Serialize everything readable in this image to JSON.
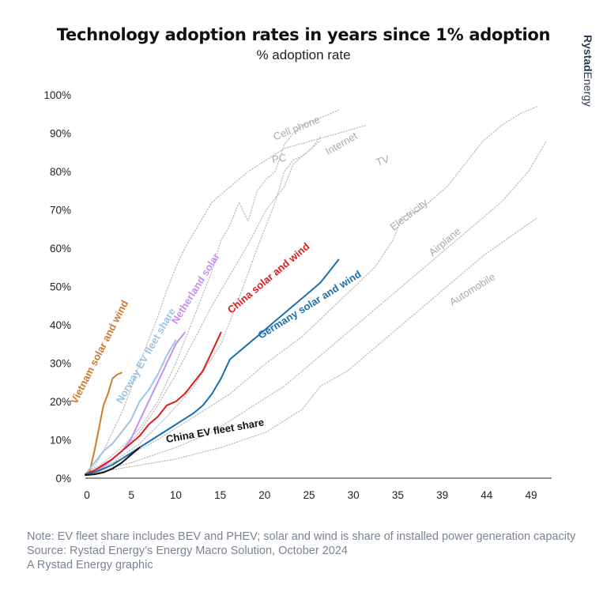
{
  "header": {
    "title": "Technology adoption rates in years since 1% adoption",
    "subtitle": "% adoption rate",
    "brand_bold": "Rystad",
    "brand_light": "Energy"
  },
  "notes": {
    "note": "Note: EV fleet share includes BEV and PHEV; solar and wind is share of installed power generation capacity",
    "source": "Source: Rystad Energy’s Energy Macro Solution, October 2024",
    "credit": "A Rystad Energy graphic"
  },
  "chart_data": {
    "type": "line",
    "title": "Technology adoption rates in years since 1% adoption",
    "subtitle": "% adoption rate",
    "xlabel": "",
    "ylabel": "",
    "x_ticks": [
      "0",
      "5",
      "10",
      "15",
      "20",
      "25",
      "30",
      "35",
      "39",
      "44",
      "49"
    ],
    "y_ticks": [
      "0%",
      "10%",
      "20%",
      "30%",
      "40%",
      "50%",
      "60%",
      "70%",
      "80%",
      "90%",
      "100%"
    ],
    "xlim": [
      0,
      50
    ],
    "ylim": [
      0,
      100
    ],
    "grid": false,
    "legend": "inline labels",
    "series": [
      {
        "name": "Cell phone",
        "color": "#b5b5b5",
        "style": "dotted",
        "points": [
          [
            0,
            1
          ],
          [
            2,
            4
          ],
          [
            4,
            8
          ],
          [
            6,
            13
          ],
          [
            8,
            20
          ],
          [
            10,
            30
          ],
          [
            12,
            42
          ],
          [
            14,
            54
          ],
          [
            15,
            62
          ],
          [
            16,
            66
          ],
          [
            17,
            72
          ],
          [
            18,
            67
          ],
          [
            19,
            75
          ],
          [
            20,
            78
          ],
          [
            21,
            80
          ],
          [
            22,
            87
          ],
          [
            23,
            90
          ],
          [
            24,
            92
          ],
          [
            25,
            93
          ],
          [
            26,
            94
          ],
          [
            28,
            96
          ]
        ]
      },
      {
        "name": "PC",
        "color": "#b5b5b5",
        "style": "dotted",
        "points": [
          [
            0,
            1
          ],
          [
            3,
            4
          ],
          [
            6,
            9
          ],
          [
            9,
            16
          ],
          [
            12,
            24
          ],
          [
            15,
            35
          ],
          [
            17,
            47
          ],
          [
            19,
            60
          ],
          [
            20,
            66
          ],
          [
            21,
            72
          ],
          [
            22,
            80
          ],
          [
            23,
            83
          ],
          [
            24,
            84
          ],
          [
            25,
            86
          ],
          [
            26,
            89
          ]
        ]
      },
      {
        "name": "Internet",
        "color": "#b5b5b5",
        "style": "dotted",
        "points": [
          [
            0,
            1
          ],
          [
            2,
            3
          ],
          [
            4,
            7
          ],
          [
            6,
            12
          ],
          [
            8,
            19
          ],
          [
            10,
            27
          ],
          [
            12,
            36
          ],
          [
            14,
            45
          ],
          [
            16,
            53
          ],
          [
            18,
            61
          ],
          [
            20,
            70
          ],
          [
            22,
            76
          ],
          [
            23,
            82
          ],
          [
            24,
            84
          ],
          [
            25,
            86
          ],
          [
            26,
            88
          ]
        ]
      },
      {
        "name": "TV",
        "color": "#b5b5b5",
        "style": "dotted",
        "points": [
          [
            0,
            1
          ],
          [
            1,
            3
          ],
          [
            2,
            7
          ],
          [
            3,
            12
          ],
          [
            4,
            17
          ],
          [
            5,
            23
          ],
          [
            6,
            30
          ],
          [
            7,
            36
          ],
          [
            8,
            42
          ],
          [
            9,
            49
          ],
          [
            10,
            55
          ],
          [
            11,
            60
          ],
          [
            12,
            64
          ],
          [
            13,
            68
          ],
          [
            14,
            72
          ],
          [
            16,
            76
          ],
          [
            18,
            80
          ],
          [
            20,
            83
          ],
          [
            22,
            86
          ],
          [
            25,
            88
          ],
          [
            28,
            90
          ],
          [
            31,
            92
          ]
        ]
      },
      {
        "name": "Electricity",
        "color": "#b5b5b5",
        "style": "dotted",
        "points": [
          [
            0,
            1
          ],
          [
            4,
            5
          ],
          [
            8,
            10
          ],
          [
            12,
            16
          ],
          [
            16,
            22
          ],
          [
            20,
            30
          ],
          [
            24,
            37
          ],
          [
            28,
            46
          ],
          [
            32,
            55
          ],
          [
            34,
            62
          ],
          [
            35,
            68
          ],
          [
            37,
            70
          ],
          [
            40,
            76
          ],
          [
            42,
            82
          ],
          [
            44,
            88
          ],
          [
            46,
            92
          ],
          [
            48,
            95
          ],
          [
            50,
            97
          ]
        ]
      },
      {
        "name": "Airplane",
        "color": "#b5b5b5",
        "style": "dotted",
        "points": [
          [
            0,
            1
          ],
          [
            5,
            4
          ],
          [
            10,
            8
          ],
          [
            14,
            12
          ],
          [
            18,
            18
          ],
          [
            22,
            24
          ],
          [
            25,
            30
          ],
          [
            28,
            36
          ],
          [
            31,
            42
          ],
          [
            34,
            48
          ],
          [
            37,
            54
          ],
          [
            40,
            60
          ],
          [
            43,
            66
          ],
          [
            46,
            72
          ],
          [
            49,
            80
          ],
          [
            51,
            88
          ]
        ]
      },
      {
        "name": "Automobile",
        "color": "#b5b5b5",
        "style": "dotted",
        "points": [
          [
            0,
            1
          ],
          [
            5,
            3
          ],
          [
            10,
            5
          ],
          [
            15,
            8
          ],
          [
            20,
            12
          ],
          [
            24,
            18
          ],
          [
            26,
            24
          ],
          [
            29,
            28
          ],
          [
            32,
            34
          ],
          [
            35,
            40
          ],
          [
            38,
            46
          ],
          [
            41,
            52
          ],
          [
            44,
            58
          ],
          [
            47,
            63
          ],
          [
            50,
            68
          ]
        ]
      },
      {
        "name": "Vietnam solar and wind",
        "color": "#d07a2e",
        "style": "solid",
        "points": [
          [
            0,
            1
          ],
          [
            0.5,
            2
          ],
          [
            1,
            7
          ],
          [
            1.5,
            13
          ],
          [
            2,
            19
          ],
          [
            2.5,
            22
          ],
          [
            3,
            26
          ],
          [
            3.5,
            27
          ],
          [
            4,
            27.5
          ]
        ]
      },
      {
        "name": "Norway EV fleet share",
        "color": "#9cc4e4",
        "style": "solid",
        "points": [
          [
            0,
            1
          ],
          [
            1,
            4
          ],
          [
            2,
            7
          ],
          [
            3,
            9
          ],
          [
            4,
            12
          ],
          [
            5,
            15
          ],
          [
            6,
            20
          ],
          [
            7,
            23
          ],
          [
            8,
            27
          ],
          [
            9,
            32
          ],
          [
            10,
            36
          ]
        ]
      },
      {
        "name": "Netherland solar",
        "color": "#c58ff0",
        "style": "solid",
        "points": [
          [
            0,
            1
          ],
          [
            1,
            2
          ],
          [
            2,
            3
          ],
          [
            3,
            5
          ],
          [
            4,
            7
          ],
          [
            5,
            10
          ],
          [
            6,
            15
          ],
          [
            7,
            20
          ],
          [
            8,
            25
          ],
          [
            9,
            30
          ],
          [
            10,
            35
          ],
          [
            11,
            38
          ]
        ]
      },
      {
        "name": "China solar and wind",
        "color": "#e01a1a",
        "style": "solid",
        "points": [
          [
            0,
            1
          ],
          [
            1,
            2
          ],
          [
            2,
            3.5
          ],
          [
            3,
            5
          ],
          [
            4,
            7
          ],
          [
            5,
            9
          ],
          [
            6,
            11
          ],
          [
            7,
            14
          ],
          [
            8,
            16
          ],
          [
            9,
            19
          ],
          [
            10,
            20
          ],
          [
            11,
            22
          ],
          [
            12,
            25
          ],
          [
            13,
            28
          ],
          [
            14,
            33
          ],
          [
            15,
            38
          ]
        ]
      },
      {
        "name": "Germany solar and wind",
        "color": "#1a6fae",
        "style": "solid",
        "points": [
          [
            0,
            1
          ],
          [
            1,
            1.5
          ],
          [
            2,
            2.5
          ],
          [
            3,
            3.5
          ],
          [
            4,
            5
          ],
          [
            5,
            6.5
          ],
          [
            6,
            8
          ],
          [
            7,
            9.5
          ],
          [
            8,
            11
          ],
          [
            9,
            12.5
          ],
          [
            10,
            14
          ],
          [
            11,
            15.5
          ],
          [
            12,
            17
          ],
          [
            13,
            19
          ],
          [
            14,
            22
          ],
          [
            15,
            26
          ],
          [
            16,
            31
          ],
          [
            17,
            33
          ],
          [
            18,
            35
          ],
          [
            19,
            37
          ],
          [
            20,
            39
          ],
          [
            21,
            41
          ],
          [
            22,
            43
          ],
          [
            23,
            45
          ],
          [
            24,
            47
          ],
          [
            25,
            49
          ],
          [
            26,
            51
          ],
          [
            27,
            54
          ],
          [
            28,
            57
          ]
        ]
      },
      {
        "name": "China EV fleet share",
        "color": "#111111",
        "style": "solid",
        "points": [
          [
            0,
            0.8
          ],
          [
            1,
            1
          ],
          [
            2,
            1.5
          ],
          [
            3,
            2.5
          ],
          [
            4,
            4
          ],
          [
            5,
            6
          ],
          [
            6,
            8
          ]
        ]
      }
    ],
    "labels": [
      {
        "text": "Cell phone",
        "series": "Cell phone",
        "kind": "grey",
        "x": 23.5,
        "y": 90.5,
        "angle": -22
      },
      {
        "text": "PC",
        "series": "PC",
        "kind": "grey",
        "x": 21.5,
        "y": 82.5,
        "angle": -10
      },
      {
        "text": "Internet",
        "series": "Internet",
        "kind": "grey",
        "x": 28.5,
        "y": 86.5,
        "angle": -30
      },
      {
        "text": "TV",
        "series": "TV",
        "kind": "grey",
        "x": 33,
        "y": 82,
        "angle": -18
      },
      {
        "text": "Electricity",
        "series": "Electricity",
        "kind": "grey",
        "x": 36,
        "y": 68,
        "angle": -38
      },
      {
        "text": "Airplane",
        "series": "Airplane",
        "kind": "grey",
        "x": 40,
        "y": 61,
        "angle": -40
      },
      {
        "text": "Automobile",
        "series": "Automobile",
        "kind": "grey",
        "x": 43,
        "y": 48.5,
        "angle": -32
      },
      {
        "text": "Vietnam solar and wind",
        "series": "Vietnam solar and wind",
        "kind": "series",
        "x": 1.9,
        "y": 32.5,
        "angle": -63
      },
      {
        "text": "Norway EV fleet share",
        "series": "Norway EV fleet share",
        "kind": "series",
        "x": 7,
        "y": 31.5,
        "angle": -60
      },
      {
        "text": "Netherland solar",
        "series": "Netherland solar",
        "kind": "series",
        "x": 12.5,
        "y": 49,
        "angle": -58
      },
      {
        "text": "China solar and wind",
        "series": "China solar and wind",
        "kind": "series",
        "x": 20.5,
        "y": 51.5,
        "angle": -40
      },
      {
        "text": "Germany solar and wind",
        "series": "Germany solar and wind",
        "kind": "series",
        "x": 25,
        "y": 44.5,
        "angle": -32
      },
      {
        "text": "China EV fleet share",
        "series": "China EV fleet share",
        "kind": "series",
        "x": 14.4,
        "y": 11.5,
        "angle": -10
      }
    ]
  }
}
